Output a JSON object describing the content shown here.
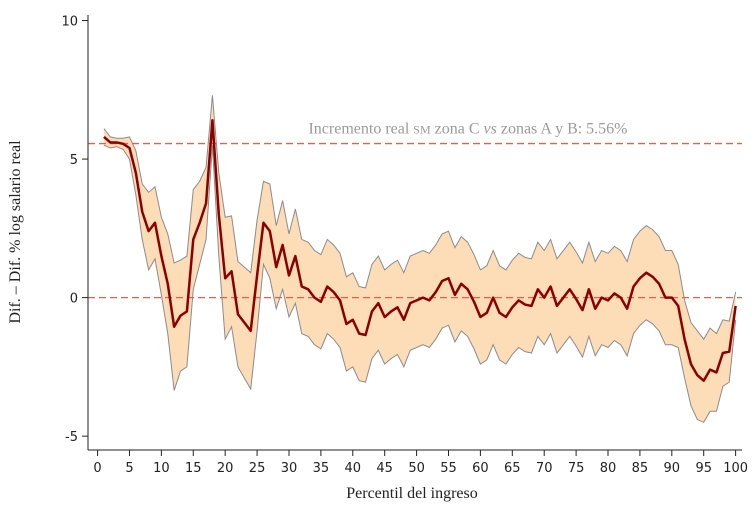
{
  "chart_data": {
    "type": "line",
    "xlabel": "Percentil del ingreso",
    "ylabel": "Dif. – Dif.  % log salario real",
    "annotation": [
      "Incremento real ",
      "sm",
      " zona C ",
      "vs",
      " zonas A y B: 5.56%"
    ],
    "x": [
      1,
      2,
      3,
      4,
      5,
      6,
      7,
      8,
      9,
      10,
      11,
      12,
      13,
      14,
      15,
      16,
      17,
      18,
      19,
      20,
      21,
      22,
      23,
      24,
      25,
      26,
      27,
      28,
      29,
      30,
      31,
      32,
      33,
      34,
      35,
      36,
      37,
      38,
      39,
      40,
      41,
      42,
      43,
      44,
      45,
      46,
      47,
      48,
      49,
      50,
      51,
      52,
      53,
      54,
      55,
      56,
      57,
      58,
      59,
      60,
      61,
      62,
      63,
      64,
      65,
      66,
      67,
      68,
      69,
      70,
      71,
      72,
      73,
      74,
      75,
      76,
      77,
      78,
      79,
      80,
      81,
      82,
      83,
      84,
      85,
      86,
      87,
      88,
      89,
      90,
      91,
      92,
      93,
      94,
      95,
      96,
      97,
      98,
      99,
      100
    ],
    "series": [
      {
        "color": "#8b0000",
        "values": [
          5.8,
          5.6,
          5.6,
          5.55,
          5.4,
          4.5,
          3.1,
          2.4,
          2.7,
          1.5,
          0.5,
          -1.05,
          -0.65,
          -0.5,
          2.1,
          2.7,
          3.4,
          6.4,
          3.0,
          0.7,
          0.95,
          -0.6,
          -0.9,
          -1.2,
          0.8,
          2.7,
          2.4,
          1.1,
          1.9,
          0.8,
          1.5,
          0.4,
          0.3,
          0.0,
          -0.15,
          0.4,
          0.2,
          -0.1,
          -0.95,
          -0.8,
          -1.3,
          -1.35,
          -0.5,
          -0.2,
          -0.7,
          -0.5,
          -0.35,
          -0.8,
          -0.2,
          -0.1,
          0.0,
          -0.1,
          0.2,
          0.6,
          0.7,
          0.1,
          0.5,
          0.3,
          -0.15,
          -0.7,
          -0.55,
          0.0,
          -0.55,
          -0.7,
          -0.35,
          -0.1,
          -0.25,
          -0.3,
          0.3,
          0.0,
          0.4,
          -0.3,
          0.0,
          0.3,
          -0.05,
          -0.45,
          0.3,
          -0.4,
          0.0,
          -0.1,
          0.15,
          0.0,
          -0.4,
          0.4,
          0.7,
          0.9,
          0.75,
          0.5,
          0.0,
          0.0,
          -0.3,
          -1.5,
          -2.4,
          -2.8,
          -3.0,
          -2.6,
          -2.7,
          -2.0,
          -1.95,
          -0.3
        ]
      }
    ],
    "band": {
      "color": "#fddcb8",
      "edge_color": "#8c8c8c",
      "upper": [
        6.1,
        5.8,
        5.75,
        5.75,
        5.8,
        5.3,
        4.1,
        3.8,
        4.0,
        2.9,
        2.3,
        1.25,
        1.35,
        1.5,
        3.9,
        4.2,
        4.7,
        7.3,
        4.5,
        2.9,
        2.95,
        1.3,
        1.1,
        0.9,
        2.8,
        4.2,
        4.1,
        2.6,
        3.5,
        2.3,
        3.2,
        2.1,
        2.0,
        1.7,
        1.55,
        2.1,
        1.9,
        1.6,
        0.75,
        0.9,
        0.4,
        0.35,
        1.2,
        1.5,
        1.0,
        1.2,
        1.35,
        0.9,
        1.5,
        1.6,
        1.7,
        1.6,
        1.9,
        2.3,
        2.4,
        1.8,
        2.2,
        2.0,
        1.55,
        1.0,
        1.15,
        1.7,
        1.15,
        1.0,
        1.35,
        1.6,
        1.45,
        1.4,
        2.0,
        1.7,
        2.1,
        1.4,
        1.7,
        2.0,
        1.65,
        1.25,
        2.0,
        1.3,
        1.7,
        1.6,
        1.85,
        1.7,
        1.3,
        2.1,
        2.4,
        2.6,
        2.45,
        2.2,
        1.7,
        1.7,
        1.2,
        -0.1,
        -0.9,
        -1.2,
        -1.5,
        -1.1,
        -1.3,
        -0.8,
        -0.85,
        0.2
      ],
      "lower": [
        5.5,
        5.4,
        5.45,
        5.35,
        5.0,
        3.7,
        2.1,
        1.0,
        1.4,
        0.1,
        -1.3,
        -3.35,
        -2.65,
        -2.5,
        0.3,
        1.2,
        2.1,
        5.5,
        1.5,
        -1.5,
        -1.05,
        -2.5,
        -2.9,
        -3.3,
        -1.2,
        1.2,
        0.7,
        -0.4,
        0.3,
        -0.7,
        -0.2,
        -1.3,
        -1.4,
        -1.7,
        -1.85,
        -1.3,
        -1.5,
        -1.8,
        -2.65,
        -2.5,
        -3.0,
        -3.05,
        -2.2,
        -1.9,
        -2.4,
        -2.2,
        -2.05,
        -2.5,
        -1.9,
        -1.8,
        -1.7,
        -1.8,
        -1.5,
        -1.1,
        -1.0,
        -1.6,
        -1.2,
        -1.4,
        -1.85,
        -2.4,
        -2.25,
        -1.7,
        -2.25,
        -2.4,
        -2.05,
        -1.8,
        -1.95,
        -2.0,
        -1.4,
        -1.7,
        -1.3,
        -2.0,
        -1.7,
        -1.4,
        -1.75,
        -2.15,
        -1.4,
        -2.1,
        -1.7,
        -1.8,
        -1.55,
        -1.7,
        -2.1,
        -1.3,
        -1.0,
        -0.8,
        -0.95,
        -1.2,
        -1.7,
        -1.7,
        -1.8,
        -2.9,
        -3.9,
        -4.4,
        -4.5,
        -4.1,
        -4.1,
        -3.2,
        -3.05,
        -0.8
      ]
    },
    "reference_lines": [
      {
        "value": 5.56,
        "color": "#e8604c"
      },
      {
        "value": 0,
        "color": "#e8604c"
      }
    ],
    "xlim": [
      -1.5,
      101
    ],
    "ylim": [
      -5.5,
      10.2
    ],
    "xticks": [
      0,
      5,
      10,
      15,
      20,
      25,
      30,
      35,
      40,
      45,
      50,
      55,
      60,
      65,
      70,
      75,
      80,
      85,
      90,
      95,
      100
    ],
    "yticks": [
      -5,
      0,
      5,
      10
    ]
  }
}
